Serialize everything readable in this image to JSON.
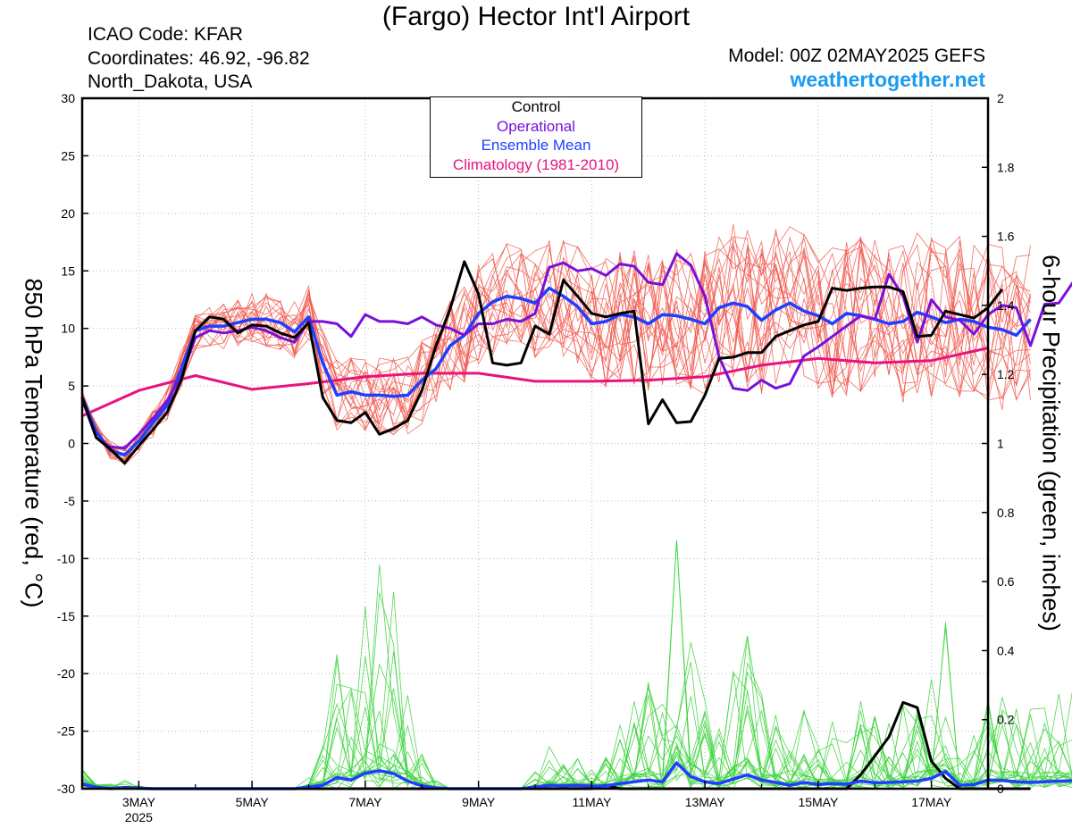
{
  "header": {
    "title": "(Fargo) Hector Int'l Airport",
    "icao": "ICAO Code: KFAR",
    "coordinates": "Coordinates: 46.92, -96.82",
    "region": "North_Dakota, USA",
    "model": "Model: 00Z 02MAY2025 GEFS",
    "site": "weathertogether.net"
  },
  "colors": {
    "control": "#000000",
    "operational": "#7a10d8",
    "ensemble_mean": "#1f3fff",
    "climatology": "#e8137e",
    "members_temp": "#f0564a",
    "members_precip": "#3fd43f"
  },
  "chart_data": {
    "type": "line",
    "title": "(Fargo) Hector Int'l Airport",
    "xlabel": "",
    "ylabel": "850 hPa Temperature (red, °C)",
    "y2label": "6-hour Precipitation (green, inches)",
    "x_range": [
      "2025-05-02T00Z",
      "2025-05-18T00Z"
    ],
    "ylim": [
      -30,
      30
    ],
    "y2lim": [
      0,
      2
    ],
    "grid": true,
    "legend_position": "top-center",
    "yticks": [
      "30",
      "25",
      "20",
      "15",
      "10",
      "5",
      "0",
      "-5",
      "-10",
      "-15",
      "-20",
      "-25",
      "-30"
    ],
    "y2ticks": [
      "2",
      "1.8",
      "1.6",
      "1.4",
      "1.2",
      "1",
      "0.8",
      "0.6",
      "0.4",
      "0.2",
      "0"
    ],
    "xticks": [
      {
        "label": "3MAY",
        "sub": "2025",
        "day": 1
      },
      {
        "label": "5MAY",
        "sub": "",
        "day": 3
      },
      {
        "label": "7MAY",
        "sub": "",
        "day": 5
      },
      {
        "label": "9MAY",
        "sub": "",
        "day": 7
      },
      {
        "label": "11MAY",
        "sub": "",
        "day": 9
      },
      {
        "label": "13MAY",
        "sub": "",
        "day": 11
      },
      {
        "label": "15MAY",
        "sub": "",
        "day": 13
      },
      {
        "label": "17MAY",
        "sub": "",
        "day": 15
      }
    ],
    "legend": [
      "Control",
      "Operational",
      "Ensemble Mean",
      "Climatology (1981-2010)"
    ],
    "series": [
      {
        "name": "Control",
        "axis": "left",
        "step_days": 0.25,
        "values": [
          4,
          0.5,
          -0.5,
          -1.7,
          -0.2,
          1.2,
          2.7,
          5.5,
          9.8,
          11,
          10.8,
          9.6,
          10.3,
          10.2,
          9.6,
          9.2,
          10.5,
          4,
          2,
          1.8,
          2.7,
          0.8,
          1.3,
          2,
          4.6,
          8.5,
          11.7,
          15.8,
          13,
          7,
          6.8,
          7,
          10.2,
          9.5,
          14.2,
          12.8,
          11.3,
          11,
          11.3,
          11.5,
          1.7,
          3.8,
          1.8,
          1.9,
          4.2,
          7.4,
          7.5,
          7.9,
          7.9,
          9.3,
          9.8,
          10.3,
          10.6,
          13.5,
          13.3,
          13.5,
          13.6,
          13.6,
          13.2,
          9.3,
          9.4,
          11.5,
          11.2,
          10.9,
          11.8,
          13.4
        ]
      },
      {
        "name": "Operational",
        "axis": "left",
        "step_days": 0.25,
        "values": [
          3.8,
          0.5,
          -0.3,
          -0.4,
          0.8,
          2.2,
          3.7,
          5.8,
          9.2,
          9.8,
          9.6,
          9.8,
          10.1,
          9.8,
          9.2,
          8.8,
          10.6,
          10.6,
          10.4,
          9.3,
          11.2,
          10.6,
          10.6,
          10.4,
          11,
          10.3,
          10,
          9.4,
          10.4,
          10.4,
          10.8,
          10.6,
          11.3,
          15.3,
          15.7,
          15,
          15.2,
          14.6,
          15.6,
          15.4,
          14,
          13.8,
          16.5,
          15.5,
          12.8,
          7.5,
          4.8,
          4.6,
          5.5,
          4.8,
          5.2,
          7.6,
          8.4,
          9.3,
          10.2,
          11.1,
          10.8,
          14.7,
          12.8,
          8.8,
          12.5,
          11,
          10.7,
          9.5,
          11.2,
          12,
          11.8,
          8.5,
          12.1,
          12.2,
          14,
          12.5,
          12.2
        ]
      },
      {
        "name": "Ensemble Mean",
        "axis": "left",
        "step_days": 0.25,
        "values": [
          4,
          1,
          -0.6,
          -1,
          0.2,
          1.8,
          3.3,
          6.5,
          9.8,
          10.2,
          10.2,
          10.5,
          10.8,
          10.8,
          10.5,
          9.7,
          11,
          7,
          4.2,
          4.5,
          4.2,
          4.2,
          4.1,
          4.2,
          5.5,
          6.5,
          8.5,
          9.4,
          11.3,
          12.3,
          12.8,
          12.6,
          12.2,
          13.5,
          12.8,
          11.9,
          10.4,
          10.6,
          11.2,
          11,
          10.4,
          11.2,
          11.1,
          10.8,
          10.4,
          11.8,
          12.2,
          11.9,
          10.7,
          11.6,
          12.2,
          11.5,
          11.1,
          10.4,
          11.3,
          11.1,
          10.8,
          10.4,
          10.6,
          11.4,
          11,
          10.5,
          10.8,
          10.6,
          10.1,
          9.9,
          9.4,
          10.8
        ]
      },
      {
        "name": "Climatology (1981-2010)",
        "axis": "left",
        "step_days": 1,
        "values": [
          2.4,
          4.6,
          5.9,
          4.7,
          5.2,
          5.8,
          6.1,
          6.1,
          5.4,
          5.4,
          5.5,
          5.8,
          6.8,
          7.4,
          7,
          7.2,
          8.3
        ]
      },
      {
        "name": "Control precip",
        "axis": "right",
        "step_days": 0.25,
        "values": [
          0.012,
          0.005,
          0,
          0.004,
          0.002,
          0,
          0,
          0,
          0,
          0,
          0,
          0,
          0,
          0,
          0,
          0,
          0,
          0,
          0,
          0,
          0,
          0,
          0,
          0,
          0,
          0,
          0,
          0,
          0,
          0,
          0,
          0,
          0,
          0,
          0,
          0,
          0,
          0.01,
          0,
          0,
          0,
          0,
          0,
          0,
          0,
          0,
          0,
          0,
          0,
          0,
          0,
          0,
          0,
          0,
          0,
          0.04,
          0.095,
          0.15,
          0.25,
          0.235,
          0.08,
          0.03,
          0,
          0,
          0,
          0,
          0,
          0
        ]
      },
      {
        "name": "Ensemble Mean precip",
        "axis": "right",
        "step_days": 0.25,
        "values": [
          0.015,
          0.003,
          0.001,
          0.002,
          0.001,
          0,
          0,
          0,
          0,
          0,
          0,
          0,
          0,
          0,
          0,
          0,
          0.005,
          0.01,
          0.032,
          0.025,
          0.045,
          0.052,
          0.044,
          0.022,
          0.008,
          0.002,
          0,
          0,
          0,
          0,
          0,
          0,
          0.005,
          0.01,
          0.008,
          0.01,
          0.007,
          0.008,
          0.015,
          0.02,
          0.025,
          0.02,
          0.075,
          0.035,
          0.02,
          0.015,
          0.028,
          0.04,
          0.025,
          0.018,
          0.01,
          0.018,
          0.012,
          0.015,
          0.013,
          0.022,
          0.017,
          0.018,
          0.02,
          0.022,
          0.03,
          0.05,
          0.01,
          0.012,
          0.025,
          0.024,
          0.02,
          0.018,
          0.02,
          0.022,
          0.023
        ]
      }
    ]
  }
}
